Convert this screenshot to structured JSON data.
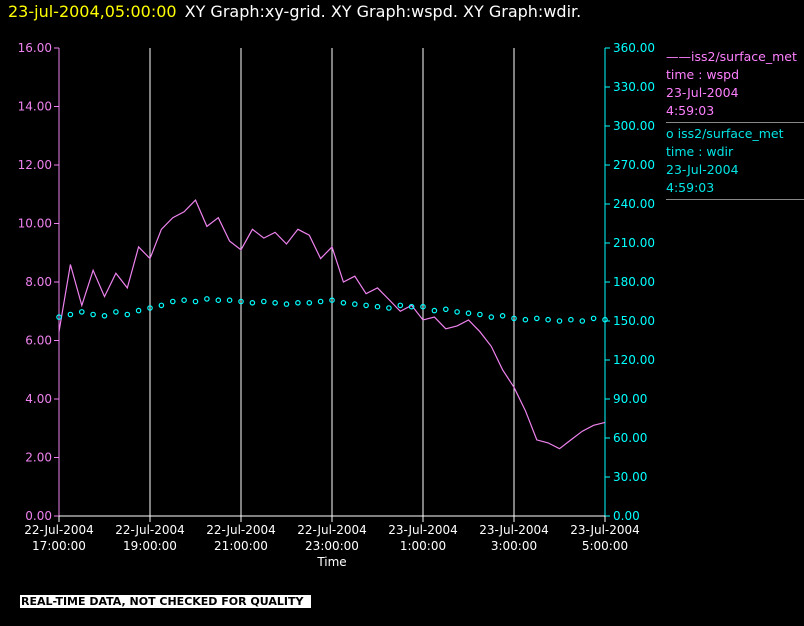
{
  "header": {
    "timestamp": "23-jul-2004,05:00:00",
    "title": "XY Graph:xy-grid.  XY Graph:wspd.  XY Graph:wdir."
  },
  "legend": {
    "wspd": {
      "marker": "——",
      "source": "iss2/surface_met",
      "var": "time : wspd",
      "date": "23-Jul-2004",
      "time": "4:59:03"
    },
    "wdir": {
      "marker": "o",
      "source": "iss2/surface_met",
      "var": "time : wdir",
      "date": "23-Jul-2004",
      "time": "4:59:03"
    }
  },
  "footer_note": "REAL-TIME DATA, NOT CHECKED FOR QUALITY",
  "colors": {
    "wspd": "#ee82ee",
    "wdir": "#00ffff",
    "timestamp": "#ffff00",
    "grid": "#ffffff"
  },
  "chart_data": {
    "type": "line",
    "xlabel": "Time",
    "x_ticks": [
      [
        "22-Jul-2004",
        "17:00:00"
      ],
      [
        "22-Jul-2004",
        "19:00:00"
      ],
      [
        "22-Jul-2004",
        "21:00:00"
      ],
      [
        "22-Jul-2004",
        "23:00:00"
      ],
      [
        "23-Jul-2004",
        "1:00:00"
      ],
      [
        "23-Jul-2004",
        "3:00:00"
      ],
      [
        "23-Jul-2004",
        "5:00:00"
      ]
    ],
    "x_unit": "hours",
    "xlim": [
      0,
      12
    ],
    "grid": "vertical lines at each x tick",
    "left_axis": {
      "ylim": [
        0,
        16
      ],
      "ticks": [
        "0.00",
        "2.00",
        "4.00",
        "6.00",
        "8.00",
        "10.00",
        "12.00",
        "14.00",
        "16.00"
      ]
    },
    "right_axis": {
      "ylim": [
        0,
        360
      ],
      "ticks": [
        "0.00",
        "30.00",
        "60.00",
        "90.00",
        "120.00",
        "150.00",
        "180.00",
        "210.00",
        "240.00",
        "270.00",
        "300.00",
        "330.00",
        "360.00"
      ]
    },
    "series": [
      {
        "name": "iss2/surface_met time : wspd",
        "axis": "left",
        "style": "line",
        "x": [
          0,
          0.25,
          0.5,
          0.75,
          1,
          1.25,
          1.5,
          1.75,
          2,
          2.25,
          2.5,
          2.75,
          3,
          3.25,
          3.5,
          3.75,
          4,
          4.25,
          4.5,
          4.75,
          5,
          5.25,
          5.5,
          5.75,
          6,
          6.25,
          6.5,
          6.75,
          7,
          7.25,
          7.5,
          7.75,
          8,
          8.25,
          8.5,
          8.75,
          9,
          9.25,
          9.5,
          9.75,
          10,
          10.25,
          10.5,
          10.75,
          11,
          11.25,
          11.5,
          11.75,
          12
        ],
        "values": [
          6.3,
          8.6,
          7.2,
          8.4,
          7.5,
          8.3,
          7.8,
          9.2,
          8.8,
          9.8,
          10.2,
          10.4,
          10.8,
          9.9,
          10.2,
          9.4,
          9.1,
          9.8,
          9.5,
          9.7,
          9.3,
          9.8,
          9.6,
          8.8,
          9.2,
          8.0,
          8.2,
          7.6,
          7.8,
          7.4,
          7.0,
          7.2,
          6.7,
          6.8,
          6.4,
          6.5,
          6.7,
          6.3,
          5.8,
          5.0,
          4.4,
          3.6,
          2.6,
          2.5,
          2.3,
          2.6,
          2.9,
          3.1,
          3.2
        ]
      },
      {
        "name": "iss2/surface_met time : wdir",
        "axis": "right",
        "style": "markers (circles)",
        "x": [
          0,
          0.25,
          0.5,
          0.75,
          1,
          1.25,
          1.5,
          1.75,
          2,
          2.25,
          2.5,
          2.75,
          3,
          3.25,
          3.5,
          3.75,
          4,
          4.25,
          4.5,
          4.75,
          5,
          5.25,
          5.5,
          5.75,
          6,
          6.25,
          6.5,
          6.75,
          7,
          7.25,
          7.5,
          7.75,
          8,
          8.25,
          8.5,
          8.75,
          9,
          9.25,
          9.5,
          9.75,
          10,
          10.25,
          10.5,
          10.75,
          11,
          11.25,
          11.5,
          11.75,
          12
        ],
        "values": [
          153,
          155,
          157,
          155,
          154,
          157,
          155,
          158,
          160,
          162,
          165,
          166,
          165,
          167,
          166,
          166,
          165,
          164,
          165,
          164,
          163,
          164,
          164,
          165,
          166,
          164,
          163,
          162,
          161,
          160,
          162,
          161,
          161,
          158,
          159,
          157,
          156,
          155,
          153,
          154,
          152,
          151,
          152,
          151,
          150,
          151,
          150,
          152,
          151
        ]
      }
    ]
  }
}
